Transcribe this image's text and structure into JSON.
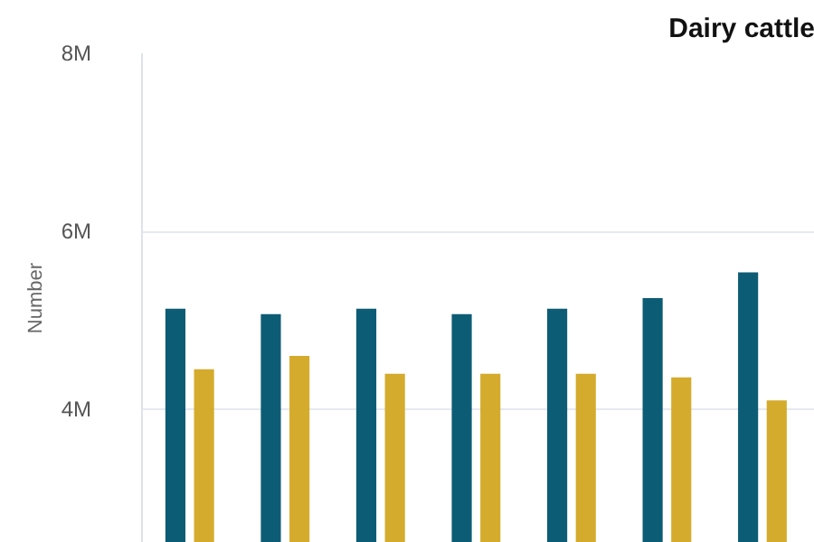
{
  "chart_data": {
    "type": "bar",
    "title": "Dairy cattle",
    "ylabel": "Number",
    "categories": [
      null,
      null,
      null,
      null,
      null,
      null,
      null
    ],
    "series": [
      {
        "color": "#0d5c75",
        "values": [
          5130000,
          5070000,
          5130000,
          5070000,
          5130000,
          5250000,
          5540000
        ]
      },
      {
        "color": "#d4ab2c",
        "values": [
          4450000,
          4600000,
          4400000,
          4400000,
          4400000,
          4360000,
          4100000
        ]
      }
    ],
    "ylim": [
      2500000,
      8000000
    ],
    "yticks": [
      {
        "value": 4000000,
        "label": "4M"
      },
      {
        "value": 6000000,
        "label": "6M"
      },
      {
        "value": 8000000,
        "label": "8M"
      }
    ],
    "grid": "y",
    "tick_labels": "y"
  }
}
